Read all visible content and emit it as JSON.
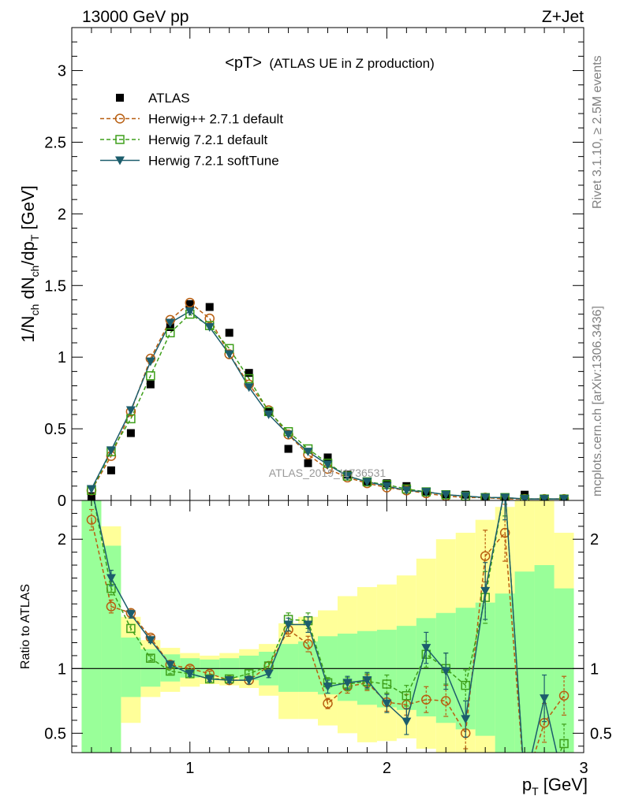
{
  "header": {
    "left": "13000 GeV pp",
    "right": "Z+Jet"
  },
  "side": {
    "top": "Rivet 3.1.10, ≥ 2.5M events",
    "bottom": "mcplots.cern.ch [arXiv:1306.3436]"
  },
  "chart_data": [
    {
      "type": "scatter",
      "title": "<pT> (ATLAS UE in Z production)",
      "title_main": "<pT>",
      "title_sub": "(ATLAS UE in Z production)",
      "watermark": "ATLAS_2019_I1736531",
      "ylabel": "1/N_ch dN_ch/dp_T [GeV]",
      "ylabel_parts": {
        "a": "1/N",
        "b": "ch",
        "c": " dN",
        "d": "ch",
        "e": "/dp",
        "f": "T",
        "g": " [GeV]"
      },
      "xlim": [
        0.4,
        3.0
      ],
      "ylim": [
        0,
        3.3
      ],
      "yticks": [
        0,
        0.5,
        1,
        1.5,
        2,
        2.5,
        3
      ],
      "ytick_labels": [
        "0",
        "0.5",
        "1",
        "1.5",
        "2",
        "2.5",
        "3"
      ],
      "legend_position": "top-left",
      "x": [
        0.5,
        0.6,
        0.7,
        0.8,
        0.9,
        1.0,
        1.1,
        1.2,
        1.3,
        1.4,
        1.5,
        1.6,
        1.7,
        1.8,
        1.9,
        2.0,
        2.1,
        2.2,
        2.3,
        2.4,
        2.5,
        2.6,
        2.7,
        2.8,
        2.9
      ],
      "series": [
        {
          "name": "ATLAS",
          "color": "#000000",
          "marker": "square-filled",
          "line": "none",
          "values": [
            0.03,
            0.21,
            0.47,
            0.81,
            1.21,
            1.37,
            1.35,
            1.17,
            0.89,
            0.62,
            0.36,
            0.26,
            0.3,
            0.18,
            0.13,
            0.12,
            0.1,
            0.06,
            0.04,
            0.04,
            0.02,
            0.02,
            0.04,
            0.01,
            0.01
          ]
        },
        {
          "name": "Herwig++ 2.7.1 default",
          "color": "#b85e10",
          "marker": "circle-open",
          "line": "dashed",
          "values": [
            0.07,
            0.31,
            0.62,
            0.99,
            1.26,
            1.38,
            1.27,
            1.02,
            0.81,
            0.63,
            0.46,
            0.32,
            0.22,
            0.16,
            0.12,
            0.09,
            0.07,
            0.05,
            0.03,
            0.02,
            0.02,
            0.01,
            0.01,
            0.01,
            0.01
          ]
        },
        {
          "name": "Herwig 7.2.1 default",
          "color": "#3e9f1a",
          "marker": "square-open",
          "line": "dashed",
          "values": [
            0.07,
            0.34,
            0.57,
            0.87,
            1.17,
            1.3,
            1.22,
            1.06,
            0.85,
            0.62,
            0.48,
            0.36,
            0.26,
            0.17,
            0.13,
            0.11,
            0.08,
            0.06,
            0.04,
            0.03,
            0.02,
            0.02,
            0.01,
            0.01,
            0.01
          ]
        },
        {
          "name": "Herwig 7.2.1 softTune",
          "color": "#1c5d6c",
          "marker": "triangle-down-filled",
          "line": "solid",
          "values": [
            0.08,
            0.35,
            0.63,
            0.97,
            1.24,
            1.32,
            1.21,
            1.02,
            0.79,
            0.6,
            0.46,
            0.34,
            0.25,
            0.17,
            0.13,
            0.1,
            0.07,
            0.06,
            0.04,
            0.03,
            0.02,
            0.02,
            0.01,
            0.01,
            0.01
          ]
        }
      ]
    },
    {
      "type": "line",
      "ylabel": "Ratio to ATLAS",
      "xlabel": "p_T [GeV]",
      "xlabel_parts": {
        "a": "p",
        "b": "T",
        "c": " [GeV]"
      },
      "xlim": [
        0.4,
        3.0
      ],
      "ylim": [
        0.35,
        2.3
      ],
      "xticks": [
        1,
        2,
        3
      ],
      "xtick_labels": [
        "1",
        "2",
        "3"
      ],
      "yticks": [
        0.5,
        1,
        2
      ],
      "ytick_labels": [
        "0.5",
        "1",
        "2"
      ],
      "reference_line": 1,
      "bands": {
        "x_edges": [
          0.45,
          0.55,
          0.65,
          0.75,
          0.85,
          0.95,
          1.05,
          1.15,
          1.25,
          1.35,
          1.45,
          1.55,
          1.65,
          1.75,
          1.85,
          1.95,
          2.05,
          2.15,
          2.25,
          2.35,
          2.45,
          2.55,
          2.65,
          2.75,
          2.85,
          2.95
        ],
        "stat": {
          "color": "#99ff99",
          "low": [
            0.35,
            0.35,
            0.78,
            0.86,
            0.9,
            0.93,
            0.94,
            0.93,
            0.91,
            0.87,
            0.82,
            0.82,
            0.8,
            0.75,
            0.72,
            0.7,
            0.68,
            0.63,
            0.58,
            0.53,
            0.48,
            0.35,
            0.35,
            0.35,
            0.35
          ],
          "high": [
            2.3,
            1.95,
            1.24,
            1.15,
            1.11,
            1.08,
            1.07,
            1.08,
            1.1,
            1.13,
            1.19,
            1.21,
            1.25,
            1.27,
            1.29,
            1.3,
            1.33,
            1.39,
            1.43,
            1.47,
            1.51,
            1.58,
            1.75,
            1.8,
            1.62
          ]
        },
        "total": {
          "color": "#ffff99",
          "low": [
            0.35,
            0.35,
            0.58,
            0.78,
            0.82,
            0.86,
            0.88,
            0.87,
            0.85,
            0.79,
            0.61,
            0.61,
            0.56,
            0.5,
            0.43,
            0.44,
            0.46,
            0.38,
            0.35,
            0.35,
            0.35,
            0.35,
            0.35,
            0.35,
            0.35
          ],
          "high": [
            2.3,
            2.1,
            1.4,
            1.22,
            1.16,
            1.12,
            1.1,
            1.12,
            1.15,
            1.19,
            1.35,
            1.4,
            1.45,
            1.56,
            1.63,
            1.65,
            1.72,
            1.85,
            2.0,
            2.05,
            2.15,
            2.25,
            2.3,
            2.3,
            2.05
          ]
        }
      },
      "series": [
        {
          "name": "Herwig++ 2.7.1 default",
          "color": "#b85e10",
          "values": [
            2.15,
            1.48,
            1.43,
            1.24,
            1.03,
            1.0,
            0.96,
            0.91,
            0.91,
            1.02,
            1.3,
            1.19,
            0.73,
            0.86,
            0.89,
            0.74,
            0.72,
            0.76,
            0.75,
            0.5,
            1.87,
            2.05,
            0.1,
            0.58,
            0.79
          ],
          "errors": [
            0.08,
            0.05,
            0.03,
            0.02,
            0.02,
            0.02,
            0.02,
            0.02,
            0.03,
            0.03,
            0.05,
            0.06,
            0.04,
            0.05,
            0.06,
            0.07,
            0.08,
            0.1,
            0.12,
            0.12,
            0.2,
            0.22,
            0.1,
            0.15,
            0.15
          ]
        },
        {
          "name": "Herwig 7.2.1 default",
          "color": "#3e9f1a",
          "values": [
            2.4,
            1.62,
            1.31,
            1.08,
            0.98,
            0.96,
            0.92,
            0.92,
            0.96,
            1.02,
            1.38,
            1.37,
            0.89,
            0.88,
            0.9,
            0.88,
            0.79,
            1.11,
            1.0,
            0.87,
            1.55,
            2.4,
            0.1,
            0.1,
            0.42
          ],
          "errors": [
            0.08,
            0.05,
            0.03,
            0.02,
            0.02,
            0.02,
            0.02,
            0.02,
            0.03,
            0.03,
            0.05,
            0.06,
            0.04,
            0.05,
            0.06,
            0.07,
            0.08,
            0.1,
            0.12,
            0.12,
            0.2,
            0.22,
            0.1,
            0.15,
            0.15
          ]
        },
        {
          "name": "Herwig 7.2.1 softTune",
          "color": "#1c5d6c",
          "values": [
            2.4,
            1.7,
            1.42,
            1.22,
            1.03,
            0.96,
            0.92,
            0.91,
            0.91,
            0.96,
            1.34,
            1.34,
            0.86,
            0.89,
            0.91,
            0.73,
            0.59,
            1.16,
            0.98,
            0.61,
            1.6,
            2.4,
            0.1,
            0.77,
            0.1
          ],
          "errors": [
            0.08,
            0.06,
            0.03,
            0.02,
            0.02,
            0.02,
            0.02,
            0.02,
            0.03,
            0.03,
            0.05,
            0.06,
            0.05,
            0.05,
            0.06,
            0.07,
            0.1,
            0.12,
            0.14,
            0.14,
            0.22,
            0.25,
            0.1,
            0.18,
            0.15
          ]
        }
      ]
    }
  ]
}
